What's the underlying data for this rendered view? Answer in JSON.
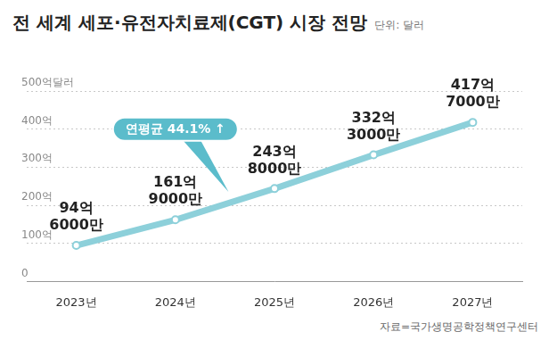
{
  "chart_data": {
    "type": "line",
    "title": "전 세계 세포·유전자치료제(CGT) 시장 전망",
    "subtitle": "단위: 달러",
    "categories": [
      "2023년",
      "2024년",
      "2025년",
      "2026년",
      "2027년"
    ],
    "values": [
      94.6,
      161.9,
      243.8,
      332.3,
      417.7
    ],
    "value_labels": [
      "94억\n6000만",
      "161억\n9000만",
      "243억\n8000만",
      "332억\n3000만",
      "417억\n7000만"
    ],
    "color": "#8dd0da",
    "marker": "circle",
    "ylim": [
      0,
      500
    ],
    "yticks": [
      0,
      {
        "value": 100,
        "label": "100억"
      },
      {
        "value": 200,
        "label": "200억"
      },
      {
        "value": 300,
        "label": "300억"
      },
      {
        "value": 400,
        "label": "400억"
      },
      {
        "value": 500,
        "label": "500억달러"
      }
    ],
    "grid": true,
    "data_labels": true,
    "annotation": "연평균 44.1% ↑",
    "source": "자료=국가생명공학정책연구센터"
  }
}
